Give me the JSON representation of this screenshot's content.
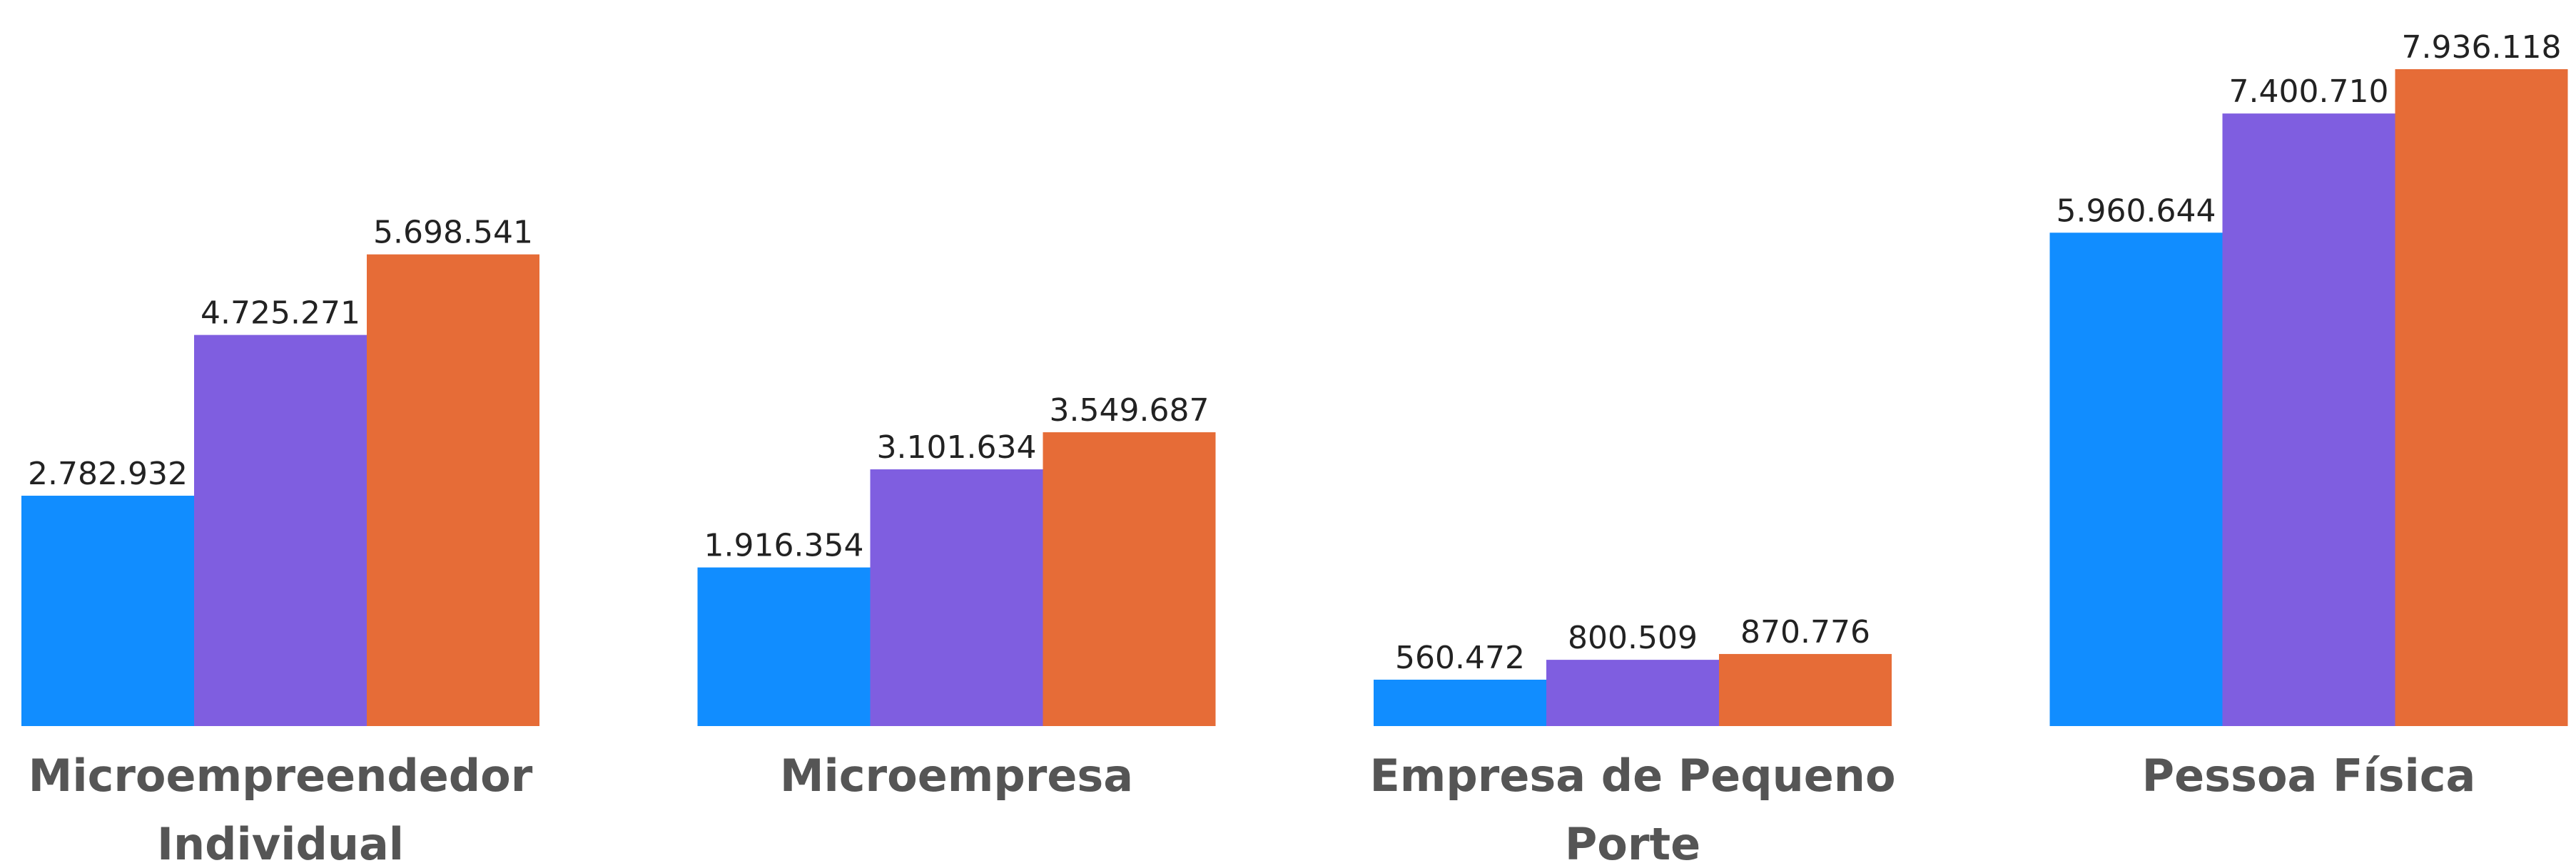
{
  "chart_data": {
    "type": "bar",
    "categories": [
      "Microempreendedor Individual",
      "Microempresa",
      "Empresa de Pequeno Porte",
      "Pessoa Física"
    ],
    "series": [
      {
        "color": "#118dff",
        "values": [
          2782932,
          1916354,
          560472,
          5960644
        ],
        "value_labels": [
          "2.782.932",
          "1.916.354",
          "560.472",
          "5.960.644"
        ]
      },
      {
        "color": "#7f5ee0",
        "values": [
          4725271,
          3101634,
          800509,
          7400710
        ],
        "value_labels": [
          "4.725.271",
          "3.101.634",
          "800.509",
          "7.400.710"
        ]
      },
      {
        "color": "#e66c37",
        "values": [
          5698541,
          3549687,
          870776,
          7936118
        ],
        "value_labels": [
          "5.698.541",
          "3.549.687",
          "870.776",
          "7.936.118"
        ]
      }
    ]
  }
}
